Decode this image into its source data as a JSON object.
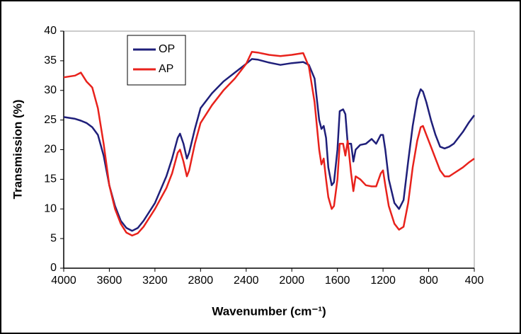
{
  "chart_data": {
    "type": "line",
    "x_label": "Wavenumber (cm⁻¹)",
    "y_label": "Transmission (%)",
    "x": [
      4000,
      3900,
      3850,
      3800,
      3750,
      3700,
      3650,
      3600,
      3550,
      3500,
      3450,
      3400,
      3350,
      3300,
      3200,
      3100,
      3050,
      3000,
      2980,
      2950,
      2920,
      2900,
      2850,
      2800,
      2700,
      2600,
      2500,
      2400,
      2350,
      2300,
      2200,
      2100,
      2000,
      1900,
      1850,
      1800,
      1760,
      1740,
      1720,
      1700,
      1680,
      1650,
      1630,
      1600,
      1580,
      1550,
      1530,
      1510,
      1480,
      1460,
      1440,
      1400,
      1350,
      1300,
      1260,
      1220,
      1200,
      1180,
      1150,
      1100,
      1060,
      1020,
      980,
      940,
      900,
      870,
      850,
      820,
      780,
      740,
      700,
      660,
      620,
      580,
      500,
      450,
      400
    ],
    "series": [
      {
        "name": "OP",
        "color": "#1f1f7a",
        "values": [
          25.5,
          25.2,
          24.9,
          24.5,
          23.8,
          22.5,
          19,
          14,
          10.5,
          8,
          6.8,
          6.3,
          6.8,
          8,
          11,
          15.5,
          18.5,
          22,
          22.7,
          21,
          18.5,
          19.5,
          23.5,
          27,
          29.5,
          31.5,
          33,
          34.5,
          35.3,
          35.2,
          34.7,
          34.3,
          34.6,
          34.8,
          34.3,
          32,
          25,
          23.5,
          24,
          22,
          17,
          14,
          14.5,
          20,
          26.5,
          26.8,
          26,
          21,
          21,
          18,
          20,
          20.8,
          21,
          21.8,
          21,
          22.5,
          22.5,
          20,
          15,
          11,
          10,
          11.5,
          18,
          24,
          28.5,
          30.2,
          29.8,
          28,
          25,
          22.5,
          20.5,
          20.2,
          20.5,
          21,
          23,
          24.5,
          25.8
        ]
      },
      {
        "name": "AP",
        "color": "#e8221c",
        "values": [
          32.2,
          32.5,
          33,
          31.5,
          30.5,
          27,
          21,
          14,
          10,
          7.5,
          6,
          5.5,
          5.9,
          7,
          10,
          13.5,
          16,
          19.5,
          20,
          18,
          15.5,
          16.5,
          21,
          24.5,
          27.5,
          30,
          32,
          34.5,
          36.5,
          36.4,
          36,
          35.8,
          36,
          36.3,
          34,
          28,
          20,
          17.5,
          18.5,
          15,
          12,
          10,
          10.5,
          15,
          21,
          21,
          19,
          21.5,
          16,
          13,
          15.5,
          15,
          14,
          13.8,
          13.8,
          16,
          16.5,
          14,
          10.5,
          7.5,
          6.5,
          7,
          11,
          17,
          21.5,
          23.8,
          24,
          22.5,
          20.5,
          18.5,
          16.5,
          15.5,
          15.5,
          16,
          17,
          17.8,
          18.5
        ]
      }
    ],
    "xlim": [
      4000,
      400
    ],
    "xticks": [
      4000,
      3600,
      3200,
      2800,
      2400,
      2000,
      1600,
      1200,
      800,
      400
    ],
    "ylim": [
      0,
      40
    ],
    "yticks": [
      0,
      5,
      10,
      15,
      20,
      25,
      30,
      35,
      40
    ],
    "legend": "upper left"
  }
}
